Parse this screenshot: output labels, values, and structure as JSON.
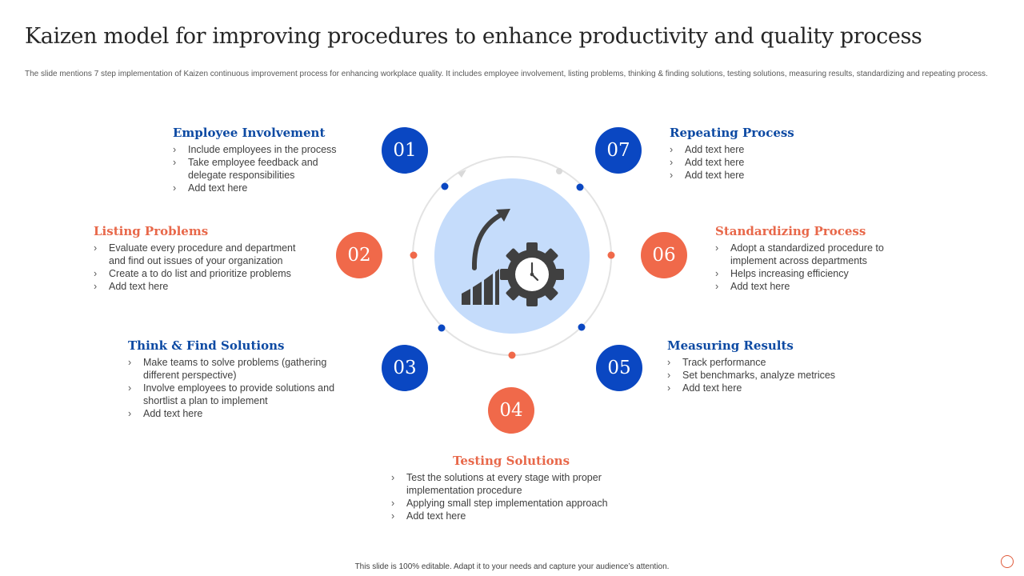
{
  "title": "Kaizen model for improving procedures to enhance productivity and quality process",
  "description": "The slide mentions 7 step implementation  of Kaizen continuous improvement process for enhancing workplace quality. It includes employee involvement, listing problems, thinking & finding solutions, testing solutions, measuring results, standardizing and repeating process.",
  "footer": "This slide is 100% editable.  Adapt it to your needs and capture your audience’s attention.",
  "colors": {
    "blue": "#0a47c2",
    "orange": "#f0694a",
    "center_fill": "#c5dcfb",
    "icon": "#404040"
  },
  "center_icon": "growth-gear-clock-icon",
  "steps": [
    {
      "number": "01",
      "title": "Employee Involvement",
      "color": "blue",
      "bullets": [
        "Include employees in the process",
        "Take employee feedback and delegate responsibilities",
        "Add text here"
      ]
    },
    {
      "number": "02",
      "title": "Listing Problems",
      "color": "orange",
      "bullets": [
        "Evaluate every procedure  and department and find out issues of your organization",
        "Create  a to do list and prioritize problems",
        "Add text here"
      ]
    },
    {
      "number": "03",
      "title": "Think & Find Solutions",
      "color": "blue",
      "bullets": [
        "Make teams to solve problems (gathering different  perspective)",
        "Involve  employees to provide  solutions and shortlist a plan to implement",
        "Add text here"
      ]
    },
    {
      "number": "04",
      "title": "Testing Solutions",
      "color": "orange",
      "bullets": [
        "Test the solutions at every  stage with proper implementation  procedure",
        "Applying  small step implementation approach",
        "Add text here"
      ]
    },
    {
      "number": "05",
      "title": "Measuring Results",
      "color": "blue",
      "bullets": [
        "Track performance",
        "Set benchmarks, analyze metrices",
        "Add text here"
      ]
    },
    {
      "number": "06",
      "title": "Standardizing  Process",
      "color": "orange",
      "bullets": [
        "Adopt a standardized procedure to implement across departments",
        "Helps increasing efficiency",
        "Add text here"
      ]
    },
    {
      "number": "07",
      "title": "Repeating Process",
      "color": "blue",
      "bullets": [
        "Add text here",
        "Add text here",
        "Add text here"
      ]
    }
  ]
}
